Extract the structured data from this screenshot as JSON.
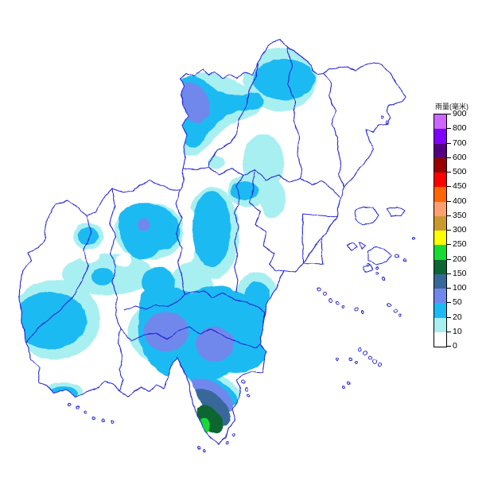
{
  "legend": {
    "title": "雨量(毫米)",
    "unit_label": "毫米",
    "ticks": [
      900,
      800,
      700,
      600,
      500,
      450,
      400,
      350,
      300,
      250,
      200,
      150,
      100,
      50,
      20,
      10,
      0
    ],
    "cells": [
      {
        "min": 800,
        "max": 900,
        "color": "#CC66FF"
      },
      {
        "min": 700,
        "max": 800,
        "color": "#8000FF"
      },
      {
        "min": 600,
        "max": 700,
        "color": "#550080"
      },
      {
        "min": 500,
        "max": 600,
        "color": "#990000"
      },
      {
        "min": 450,
        "max": 500,
        "color": "#FF0000"
      },
      {
        "min": 400,
        "max": 450,
        "color": "#FF6600"
      },
      {
        "min": 350,
        "max": 400,
        "color": "#FF9E70"
      },
      {
        "min": 300,
        "max": 350,
        "color": "#C9992E"
      },
      {
        "min": 250,
        "max": 300,
        "color": "#FFFF00"
      },
      {
        "min": 200,
        "max": 250,
        "color": "#16DB35"
      },
      {
        "min": 150,
        "max": 200,
        "color": "#0A6633"
      },
      {
        "min": 100,
        "max": 150,
        "color": "#38689A"
      },
      {
        "min": 50,
        "max": 100,
        "color": "#7088EC"
      },
      {
        "min": 20,
        "max": 50,
        "color": "#1CBAF2"
      },
      {
        "min": 10,
        "max": 20,
        "color": "#A8EFF2"
      },
      {
        "min": 0,
        "max": 10,
        "color": "#FFFFFF"
      }
    ]
  },
  "map": {
    "boundary_color": "#2626D4",
    "background_color": "#FFFFFF",
    "levels_present_mm": [
      10,
      20,
      50,
      100,
      150,
      200
    ]
  }
}
